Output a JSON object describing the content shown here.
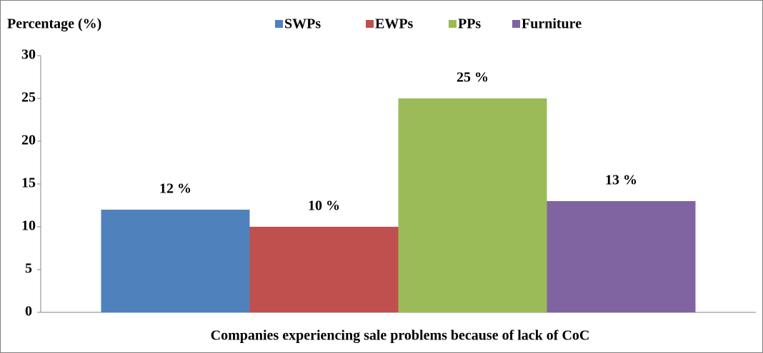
{
  "chart_data": {
    "type": "bar",
    "y_label": "Percentage (%)",
    "x_label": "Companies experiencing sale problems because of lack of CoC",
    "categories": [
      null
    ],
    "series": [
      {
        "name": "SWPs",
        "color": "#4f81bd",
        "values": [
          12
        ],
        "value_labels": [
          "12 %"
        ]
      },
      {
        "name": "EWPs",
        "color": "#c0504d",
        "values": [
          10
        ],
        "value_labels": [
          "10 %"
        ]
      },
      {
        "name": "PPs",
        "color": "#9bbb59",
        "values": [
          25
        ],
        "value_labels": [
          "25 %"
        ]
      },
      {
        "name": "Furniture",
        "color": "#8064a2",
        "values": [
          13
        ],
        "value_labels": [
          "13 %"
        ]
      }
    ],
    "ylim": [
      0,
      30
    ],
    "yticks": [
      0,
      5,
      10,
      15,
      20,
      25,
      30
    ],
    "grid": false,
    "legend": "top"
  }
}
